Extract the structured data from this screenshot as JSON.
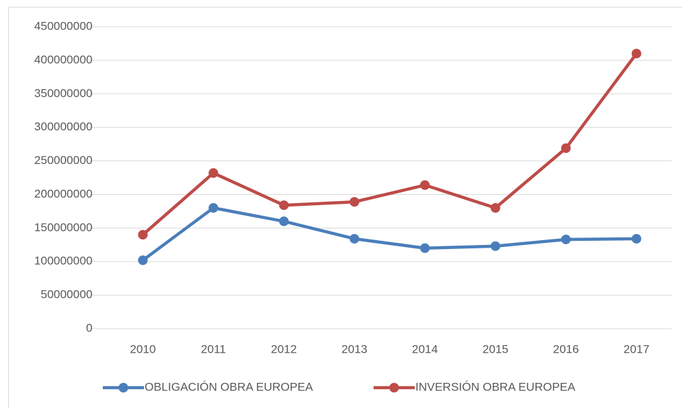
{
  "chart_data": {
    "type": "line",
    "categories": [
      "2010",
      "2011",
      "2012",
      "2013",
      "2014",
      "2015",
      "2016",
      "2017"
    ],
    "series": [
      {
        "name": "OBLIGACIÓN OBRA EUROPEA",
        "color": "#4a7ebb",
        "values": [
          102000000,
          180000000,
          160000000,
          134000000,
          120000000,
          123000000,
          133000000,
          134000000
        ]
      },
      {
        "name": "INVERSIÓN OBRA EUROPEA",
        "color": "#be4b48",
        "values": [
          140000000,
          232000000,
          184000000,
          189000000,
          214000000,
          180000000,
          269000000,
          410000000
        ]
      }
    ],
    "ylim": [
      0,
      450000000
    ],
    "yticks": [
      0,
      50000000,
      100000000,
      150000000,
      200000000,
      250000000,
      300000000,
      350000000,
      400000000,
      450000000
    ],
    "grid": true,
    "legend": "bottom"
  }
}
